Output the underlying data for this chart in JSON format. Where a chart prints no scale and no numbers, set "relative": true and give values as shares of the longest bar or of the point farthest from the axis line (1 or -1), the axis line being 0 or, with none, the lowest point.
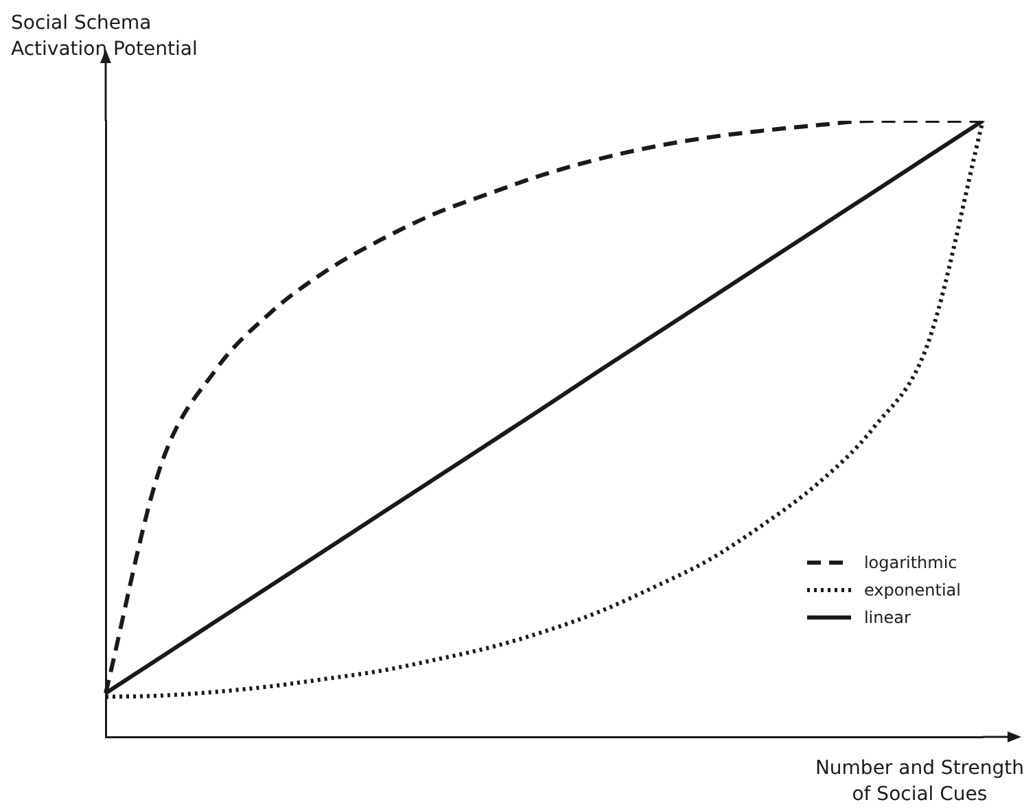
{
  "chart_data": {
    "type": "line",
    "relative": true,
    "xlabel": "Number and Strength\nof Social Cues",
    "ylabel": "Social Schema\nActivation Potential",
    "categories": [
      null,
      null,
      null,
      null,
      null,
      null,
      null,
      null,
      null,
      null,
      null,
      null,
      null,
      null,
      null,
      null,
      null
    ],
    "marker": "none",
    "grid": false,
    "legend": "bottom right",
    "series": [
      {
        "name": "logarithmic",
        "color": "#1a1a1a",
        "line_style": "dashed",
        "values": [
          0.071,
          0.439,
          0.595,
          0.688,
          0.755,
          0.806,
          0.849,
          0.882,
          0.913,
          0.938,
          0.958,
          0.973,
          0.984,
          0.993,
          1,
          1,
          1
        ]
      },
      {
        "name": "exponential",
        "color": "#1a1a1a",
        "line_style": "dotted",
        "values": [
          0.065,
          0.067,
          0.073,
          0.082,
          0.094,
          0.107,
          0.125,
          0.145,
          0.171,
          0.203,
          0.243,
          0.287,
          0.345,
          0.412,
          0.501,
          0.639,
          1
        ]
      },
      {
        "name": "linear",
        "color": "#1a1a1a",
        "line_style": "solid",
        "values": [
          0.071,
          0.129,
          0.187,
          0.245,
          0.303,
          0.361,
          0.419,
          0.477,
          0.535,
          0.594,
          0.652,
          0.71,
          0.768,
          0.826,
          0.884,
          0.942,
          1
        ]
      }
    ]
  }
}
